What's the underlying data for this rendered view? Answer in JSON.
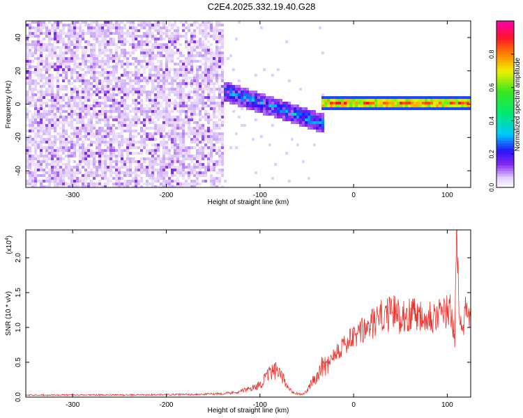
{
  "figure": {
    "title": "C2E4.2025.332.19.40.G28"
  },
  "chart_data": [
    {
      "type": "heatmap",
      "xlabel": "Height of straight line (km)",
      "ylabel": "Frequency (Hz)",
      "xlim": [
        -350,
        125
      ],
      "ylim": [
        -50,
        50
      ],
      "xticks": [
        -300,
        -200,
        -100,
        0,
        100
      ],
      "yticks": [
        -40,
        -20,
        0,
        20,
        40
      ],
      "colorbar": {
        "label": "Normalized spectral amplitude",
        "range": [
          0,
          1
        ],
        "ticks": [
          0.0,
          0.2,
          0.4,
          0.6,
          0.8
        ],
        "tick_labels": [
          "0.0",
          "0.2",
          "0.4",
          "0.6",
          "0.8"
        ],
        "colormap": "rainbow (white-violet-blue-cyan-green-yellow-red-magenta)"
      },
      "regions": [
        {
          "x": [
            -350,
            -140
          ],
          "y": [
            -50,
            50
          ],
          "amplitude": [
            0.03,
            0.12
          ],
          "description": "diffuse noise"
        },
        {
          "x": [
            -140,
            -30
          ],
          "y_center_start": 8,
          "y_center_end": -12,
          "halfwidth": 6,
          "amplitude": [
            0.1,
            0.4
          ]
        },
        {
          "x": [
            -35,
            125
          ],
          "y_center": 0.5,
          "halfwidth": 2,
          "amplitude": [
            0.6,
            0.95
          ],
          "description": "narrow carrier line"
        }
      ]
    },
    {
      "type": "line",
      "xlabel": "Height of straight line (km)",
      "ylabel": "SNR (10 * v/v)",
      "y_multiplier": "(x10",
      "y_multiplier_exp": "4",
      "y_multiplier_close": ")",
      "xlim": [
        -350,
        125
      ],
      "ylim": [
        0,
        24000
      ],
      "xticks": [
        -300,
        -200,
        -100,
        0,
        100
      ],
      "yticks": [
        0,
        5000,
        10000,
        15000,
        20000
      ],
      "ytick_labels": [
        "0.0",
        "0.5",
        "1.0",
        "1.5",
        "2.0"
      ],
      "color": "#e8312a",
      "series": [
        {
          "x": [
            -350,
            -300,
            -250,
            -200,
            -160,
            -130,
            -110,
            -100,
            -95,
            -90,
            -85,
            -80,
            -75,
            -70,
            -65,
            -60,
            -55,
            -50,
            -45,
            -40,
            -35,
            -32,
            -30,
            -25,
            -20,
            -15,
            -10,
            -5,
            0,
            5,
            10,
            15,
            20,
            25,
            30,
            35,
            40,
            45,
            50,
            55,
            60,
            65,
            70,
            75,
            80,
            85,
            90,
            95,
            100,
            105,
            108,
            110,
            113,
            117,
            120,
            125
          ],
          "y": [
            300,
            300,
            300,
            350,
            400,
            600,
            1200,
            1800,
            2500,
            3300,
            3800,
            3500,
            2500,
            1500,
            800,
            500,
            400,
            800,
            2000,
            3000,
            4000,
            5000,
            4500,
            5500,
            6500,
            7000,
            7500,
            8000,
            8500,
            9000,
            9500,
            10000,
            10500,
            11000,
            11500,
            12000,
            11800,
            12200,
            11500,
            12000,
            11700,
            12500,
            11800,
            12000,
            12200,
            11500,
            12000,
            11800,
            12300,
            12000,
            7000,
            24000,
            12500,
            11000,
            12000,
            11500
          ]
        }
      ]
    }
  ]
}
